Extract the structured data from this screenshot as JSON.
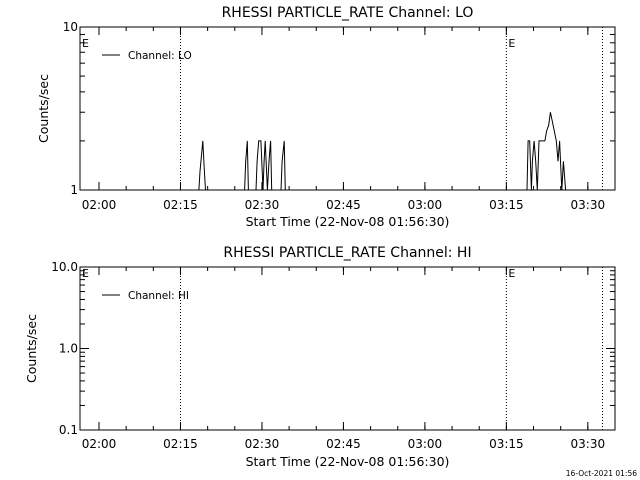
{
  "timestamp": "16-Oct-2021 01:56",
  "x_axis": {
    "start_minute": 0,
    "end_minute": 98.5,
    "tick_labels": [
      "02:00",
      "02:15",
      "02:30",
      "02:45",
      "03:00",
      "03:15",
      "03:30"
    ]
  },
  "chart_data": [
    {
      "type": "line",
      "title": "RHESSI PARTICLE_RATE Channel: LO",
      "xlabel": "Start Time (22-Nov-08 01:56:30)",
      "ylabel": "Counts/sec",
      "yscale": "log",
      "ylim": [
        1,
        10
      ],
      "ytick_labels": [
        "1",
        "10"
      ],
      "ytick_values": [
        1,
        10
      ],
      "legend": "top-left",
      "x_unit": "minutes after 01:56:30",
      "series": [
        {
          "name": "Channel: LO",
          "color": "#000000",
          "x": [
            21.9,
            22.1,
            22.6,
            22.9,
            23.1,
            30.3,
            30.5,
            30.8,
            31.0,
            32.4,
            32.6,
            32.9,
            33.3,
            33.7,
            33.9,
            34.1,
            34.5,
            34.8,
            35.1,
            35.3,
            37.0,
            37.2,
            37.6,
            37.8,
            82.3,
            82.5,
            82.8,
            83.1,
            83.3,
            83.6,
            83.9,
            84.2,
            84.5,
            85.1,
            85.6,
            85.9,
            86.3,
            86.6,
            87.1,
            87.7,
            88.0,
            88.3,
            88.7,
            89.0,
            89.4
          ],
          "y": [
            1,
            1.3,
            2,
            1.3,
            1,
            1,
            1.5,
            2,
            1,
            1,
            1.5,
            2,
            2,
            1,
            1.5,
            2,
            1,
            1.5,
            2,
            1,
            1,
            1.5,
            2,
            1,
            1,
            2,
            2,
            1,
            1.5,
            2,
            1.5,
            1,
            2,
            2,
            2,
            2.3,
            2.5,
            3,
            2.5,
            2,
            1.5,
            2,
            1,
            1.5,
            1
          ]
        }
      ],
      "annotations": [
        {
          "text": "E",
          "x": 0
        },
        {
          "text": "E",
          "x": 78.5
        }
      ],
      "vlines": [
        18.5,
        78.5,
        96.2
      ]
    },
    {
      "type": "line",
      "title": "RHESSI PARTICLE_RATE Channel: HI",
      "xlabel": "Start Time (22-Nov-08 01:56:30)",
      "ylabel": "Counts/sec",
      "yscale": "log",
      "ylim": [
        0.1,
        10
      ],
      "ytick_labels": [
        "0.1",
        "1.0",
        "10.0"
      ],
      "ytick_values": [
        0.1,
        1,
        10
      ],
      "legend": "top-left",
      "x_unit": "minutes after 01:56:30",
      "series": [
        {
          "name": "Channel: HI",
          "color": "#000000",
          "x": [],
          "y": []
        }
      ],
      "annotations": [
        {
          "text": "E",
          "x": 0
        },
        {
          "text": "E",
          "x": 78.5
        }
      ],
      "vlines": [
        18.5,
        78.5,
        96.2
      ]
    }
  ]
}
